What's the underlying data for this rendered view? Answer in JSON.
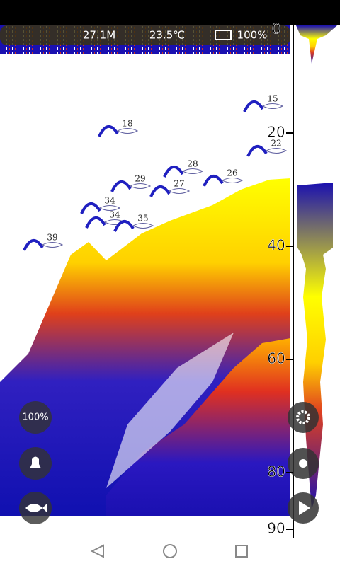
{
  "status_bar": {
    "depth": "27.1M",
    "temperature": "23.5℃",
    "battery": "100%"
  },
  "depth_scale": {
    "ticks": [
      0,
      20,
      40,
      60,
      80,
      90
    ]
  },
  "fish_depths": [
    "15",
    "18",
    "22",
    "28",
    "29",
    "27",
    "26",
    "34",
    "34",
    "35",
    "39"
  ],
  "controls": {
    "zoom": "100%"
  }
}
